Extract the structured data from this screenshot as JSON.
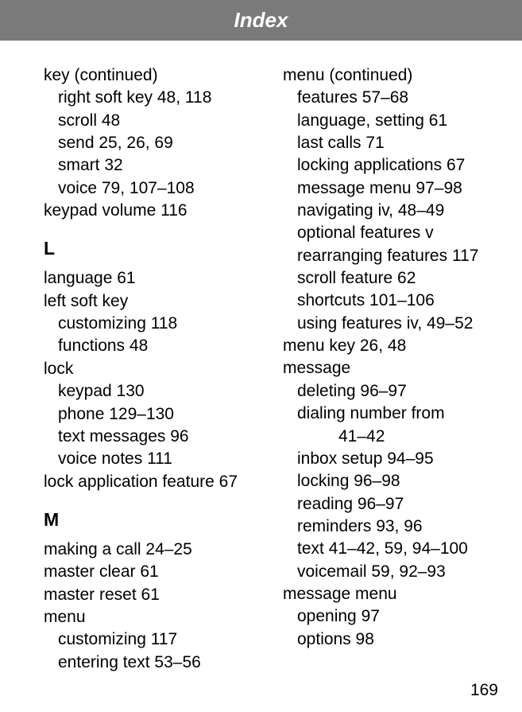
{
  "title": "Index",
  "page_number": "169",
  "left_col": {
    "key_cont": "key (continued)",
    "right_soft_key": "right soft key  48, 118",
    "scroll": "scroll  48",
    "send": "send  25, 26, 69",
    "smart": "smart  32",
    "voice": "voice  79, 107–108",
    "keypad_volume": "keypad volume  116",
    "L": "L",
    "language": "language  61",
    "left_soft_key": "left soft key",
    "customizing": "customizing  118",
    "functions": "functions  48",
    "lock": "lock",
    "keypad": "keypad  130",
    "phone": "phone  129–130",
    "text_messages": "text messages  96",
    "voice_notes": "voice notes  111",
    "lock_app": "lock application feature  67",
    "M": "M",
    "making_call": "making a call  24–25",
    "master_clear": "master clear  61",
    "master_reset": "master reset  61",
    "menu": "menu",
    "menu_customizing": "customizing  117",
    "menu_entering": "entering text  53–56"
  },
  "right_col": {
    "menu_cont": "menu (continued)",
    "features": "features  57–68",
    "language_setting": "language, setting  61",
    "last_calls": "last calls  71",
    "locking_apps": "locking applications  67",
    "message_menu": "message menu  97–98",
    "navigating": "navigating  iv, 48–49",
    "optional_features": "optional features  v",
    "rearranging": "rearranging features  117",
    "scroll_feature": "scroll feature  62",
    "shortcuts": "shortcuts  101–106",
    "using_features": "using features  iv, 49–52",
    "menu_key": "menu key  26, 48",
    "message": "message",
    "deleting": "deleting  96–97",
    "dialing": "dialing number from",
    "dialing_pages": "41–42",
    "inbox": "inbox setup  94–95",
    "locking": "locking  96–98",
    "reading": "reading  96–97",
    "reminders": "reminders  93, 96",
    "text": "text  41–42, 59, 94–100",
    "voicemail": "voicemail  59, 92–93",
    "message_menu2": "message menu",
    "opening": "opening  97",
    "options": "options  98"
  }
}
